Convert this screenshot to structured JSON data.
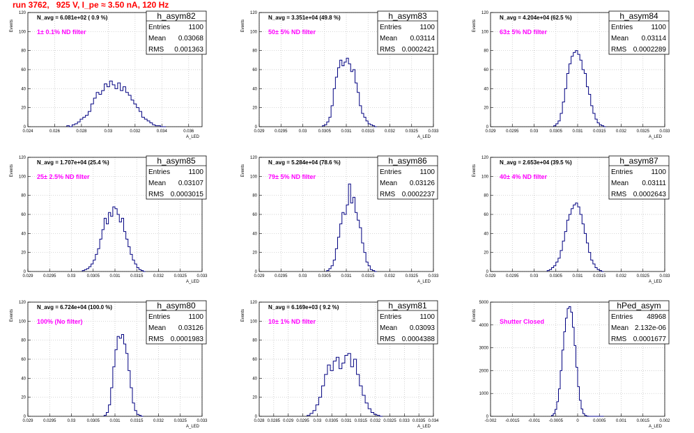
{
  "page": {
    "title": "run 3762,   925 V, I_pe ≈ 3.50 nA, 120 Hz",
    "colors": {
      "title": "#ff0000",
      "histogram": "#000080",
      "annotation": "#ff00ff",
      "grid": "#bdbdbd"
    }
  },
  "chart_data": [
    {
      "type": "bar",
      "name": "h_asym82",
      "info": "N_avg = 6.081e+02 ( 0.9 %)",
      "annotation": "1± 0.1% ND filter",
      "xlabel": "A_LED",
      "ylabel": "Events",
      "xlim": [
        0.024,
        0.037
      ],
      "ylim": [
        0,
        120
      ],
      "xticks": [
        0.024,
        0.026,
        0.028,
        0.03,
        0.032,
        0.034,
        0.036
      ],
      "xtick_labels": [
        "0.024",
        "0.026",
        "0.028",
        "0.03",
        "0.032",
        "0.034",
        "0.036"
      ],
      "yticks": [
        0,
        20,
        40,
        60,
        80,
        100,
        120
      ],
      "stats": {
        "Entries": "1100",
        "Mean": "0.03068",
        "RMS": "0.001363"
      },
      "bins": {
        "start": 0.0269,
        "width": 0.0002,
        "values": [
          1,
          0,
          2,
          3,
          5,
          8,
          10,
          12,
          16,
          24,
          30,
          36,
          34,
          38,
          45,
          42,
          48,
          44,
          40,
          46,
          38,
          42,
          36,
          33,
          28,
          24,
          20,
          16,
          10,
          8,
          6,
          4,
          2,
          1,
          1,
          0,
          0
        ]
      }
    },
    {
      "type": "bar",
      "name": "h_asym83",
      "info": "N_avg = 3.351e+04 (49.8 %)",
      "annotation": "50± 5% ND filter",
      "xlabel": "A_LED",
      "ylabel": "Events",
      "xlim": [
        0.029,
        0.033
      ],
      "ylim": [
        0,
        120
      ],
      "xticks": [
        0.029,
        0.0295,
        0.03,
        0.0305,
        0.031,
        0.0315,
        0.032,
        0.0325,
        0.033
      ],
      "xtick_labels": [
        "0.029",
        "0.0295",
        "0.03",
        "0.0305",
        "0.031",
        "0.0315",
        "0.032",
        "0.0325",
        "0.033"
      ],
      "yticks": [
        0,
        20,
        40,
        60,
        80,
        100,
        120
      ],
      "stats": {
        "Entries": "1100",
        "Mean": "0.03114",
        "RMS": "0.0002421"
      },
      "bins": {
        "start": 0.03045,
        "width": 5e-05,
        "values": [
          1,
          2,
          5,
          10,
          22,
          40,
          52,
          62,
          70,
          64,
          68,
          72,
          66,
          58,
          60,
          46,
          36,
          22,
          14,
          10,
          6,
          3,
          2,
          1,
          0
        ]
      }
    },
    {
      "type": "bar",
      "name": "h_asym84",
      "info": "N_avg = 4.204e+04 (62.5 %)",
      "annotation": "63± 5% ND filter",
      "xlabel": "A_LED",
      "ylabel": "Events",
      "xlim": [
        0.029,
        0.033
      ],
      "ylim": [
        0,
        120
      ],
      "xticks": [
        0.029,
        0.0295,
        0.03,
        0.0305,
        0.031,
        0.0315,
        0.032,
        0.0325,
        0.033
      ],
      "xtick_labels": [
        "0.029",
        "0.0295",
        "0.03",
        "0.0305",
        "0.031",
        "0.0315",
        "0.032",
        "0.0325",
        "0.033"
      ],
      "yticks": [
        0,
        20,
        40,
        60,
        80,
        100,
        120
      ],
      "stats": {
        "Entries": "1100",
        "Mean": "0.03114",
        "RMS": "0.0002289"
      },
      "bins": {
        "start": 0.03045,
        "width": 5e-05,
        "values": [
          1,
          3,
          6,
          14,
          26,
          40,
          56,
          66,
          74,
          78,
          80,
          76,
          70,
          60,
          56,
          42,
          34,
          22,
          14,
          8,
          4,
          2,
          1,
          0
        ]
      }
    },
    {
      "type": "bar",
      "name": "h_asym85",
      "info": "N_avg = 1.707e+04 (25.4 %)",
      "annotation": "25± 2.5% ND filter",
      "xlabel": "A_LED",
      "ylabel": "Events",
      "xlim": [
        0.029,
        0.033
      ],
      "ylim": [
        0,
        120
      ],
      "xticks": [
        0.029,
        0.0295,
        0.03,
        0.0305,
        0.031,
        0.0315,
        0.032,
        0.0325,
        0.033
      ],
      "xtick_labels": [
        "0.029",
        "0.0295",
        "0.03",
        "0.0305",
        "0.031",
        "0.0315",
        "0.032",
        "0.0325",
        "0.033"
      ],
      "yticks": [
        0,
        20,
        40,
        60,
        80,
        100,
        120
      ],
      "stats": {
        "Entries": "1100",
        "Mean": "0.03107",
        "RMS": "0.0003015"
      },
      "bins": {
        "start": 0.03025,
        "width": 5e-05,
        "values": [
          1,
          2,
          3,
          5,
          8,
          12,
          18,
          24,
          34,
          44,
          56,
          50,
          62,
          58,
          68,
          66,
          60,
          52,
          56,
          42,
          34,
          26,
          18,
          12,
          8,
          4,
          2,
          1,
          0
        ]
      }
    },
    {
      "type": "bar",
      "name": "h_asym86",
      "info": "N_avg = 5.284e+04 (78.6 %)",
      "annotation": "79± 5% ND filter",
      "xlabel": "A_LED",
      "ylabel": "Events",
      "xlim": [
        0.029,
        0.033
      ],
      "ylim": [
        0,
        120
      ],
      "xticks": [
        0.029,
        0.0295,
        0.03,
        0.0305,
        0.031,
        0.0315,
        0.032,
        0.0325,
        0.033
      ],
      "xtick_labels": [
        "0.029",
        "0.0295",
        "0.03",
        "0.0305",
        "0.031",
        "0.0315",
        "0.032",
        "0.0325",
        "0.033"
      ],
      "yticks": [
        0,
        20,
        40,
        60,
        80,
        100,
        120
      ],
      "stats": {
        "Entries": "1100",
        "Mean": "0.03126",
        "RMS": "0.0002237"
      },
      "bins": {
        "start": 0.03055,
        "width": 5e-05,
        "values": [
          1,
          3,
          6,
          12,
          24,
          36,
          50,
          62,
          60,
          70,
          92,
          72,
          78,
          62,
          54,
          46,
          30,
          20,
          10,
          6,
          2,
          1,
          0
        ]
      }
    },
    {
      "type": "bar",
      "name": "h_asym87",
      "info": "N_avg = 2.653e+04 (39.5 %)",
      "annotation": "40± 4% ND filter",
      "xlabel": "A_LED",
      "ylabel": "Events",
      "xlim": [
        0.029,
        0.033
      ],
      "ylim": [
        0,
        120
      ],
      "xticks": [
        0.029,
        0.0295,
        0.03,
        0.0305,
        0.031,
        0.0315,
        0.032,
        0.0325,
        0.033
      ],
      "xtick_labels": [
        "0.029",
        "0.0295",
        "0.03",
        "0.0305",
        "0.031",
        "0.0315",
        "0.032",
        "0.0325",
        "0.033"
      ],
      "yticks": [
        0,
        20,
        40,
        60,
        80,
        100,
        120
      ],
      "stats": {
        "Entries": "1100",
        "Mean": "0.03111",
        "RMS": "0.0002643"
      },
      "bins": {
        "start": 0.0303,
        "width": 5e-05,
        "values": [
          1,
          2,
          4,
          6,
          10,
          14,
          22,
          32,
          42,
          54,
          60,
          66,
          70,
          72,
          68,
          60,
          50,
          40,
          30,
          20,
          12,
          8,
          4,
          2,
          1,
          0
        ]
      }
    },
    {
      "type": "bar",
      "name": "h_asym80",
      "info": "N_avg = 6.724e+04 (100.0 %)",
      "annotation": "100% (No filter)",
      "xlabel": "A_LED",
      "ylabel": "Events",
      "xlim": [
        0.029,
        0.033
      ],
      "ylim": [
        0,
        120
      ],
      "xticks": [
        0.029,
        0.0295,
        0.03,
        0.0305,
        0.031,
        0.0315,
        0.032,
        0.0325,
        0.033
      ],
      "xtick_labels": [
        "0.029",
        "0.0295",
        "0.03",
        "0.0305",
        "0.031",
        "0.0315",
        "0.032",
        "0.0325",
        "0.033"
      ],
      "yticks": [
        0,
        20,
        40,
        60,
        80,
        100,
        120
      ],
      "stats": {
        "Entries": "1100",
        "Mean": "0.03126",
        "RMS": "0.0001983"
      },
      "bins": {
        "start": 0.03075,
        "width": 5e-05,
        "values": [
          1,
          4,
          12,
          30,
          52,
          70,
          84,
          82,
          86,
          76,
          66,
          48,
          30,
          14,
          6,
          2,
          1,
          0
        ]
      }
    },
    {
      "type": "bar",
      "name": "h_asym81",
      "info": "N_avg = 6.169e+03 ( 9.2 %)",
      "annotation": "10± 1% ND filter",
      "xlabel": "A_LED",
      "ylabel": "Events",
      "xlim": [
        0.028,
        0.034
      ],
      "ylim": [
        0,
        120
      ],
      "xticks": [
        0.028,
        0.0285,
        0.029,
        0.0295,
        0.03,
        0.0305,
        0.031,
        0.0315,
        0.032,
        0.0325,
        0.033,
        0.0335,
        0.034
      ],
      "xtick_labels": [
        "0.028",
        "0.0285",
        "0.029",
        "0.0295",
        "0.03",
        "0.0305",
        "0.031",
        "0.0315",
        "0.032",
        "0.0325",
        "0.033",
        "0.0335",
        "0.034"
      ],
      "yticks": [
        0,
        20,
        40,
        60,
        80,
        100,
        120
      ],
      "stats": {
        "Entries": "1100",
        "Mean": "0.03093",
        "RMS": "0.0004388"
      },
      "bins": {
        "start": 0.02965,
        "width": 0.0001,
        "values": [
          1,
          3,
          6,
          12,
          20,
          32,
          44,
          54,
          48,
          58,
          62,
          50,
          56,
          64,
          66,
          52,
          60,
          44,
          32,
          22,
          14,
          8,
          4,
          2,
          1,
          0
        ]
      }
    },
    {
      "type": "bar",
      "name": "hPed_asym",
      "info": "",
      "annotation": "Shutter Closed",
      "xlabel": "A_LED",
      "ylabel": "Events",
      "xlim": [
        -0.002,
        0.002
      ],
      "ylim": [
        0,
        5000
      ],
      "xticks": [
        -0.002,
        -0.0015,
        -0.001,
        -0.0005,
        0,
        0.0005,
        0.001,
        0.0015,
        0.002
      ],
      "xtick_labels": [
        "-0.002",
        "-0.0015",
        "-0.001",
        "-0.0005",
        "0",
        "0.0005",
        "0.001",
        "0.0015",
        "0.002"
      ],
      "yticks": [
        0,
        1000,
        2000,
        3000,
        4000,
        5000
      ],
      "stats": {
        "Entries": "48968",
        "Mean": "2.132e-06",
        "RMS": "0.0001677"
      },
      "bins": {
        "start": -0.0006,
        "width": 4e-05,
        "values": [
          40,
          120,
          300,
          640,
          1200,
          2000,
          2900,
          3700,
          4300,
          4720,
          4800,
          4560,
          3900,
          3100,
          2150,
          1300,
          700,
          320,
          120,
          40,
          10,
          0,
          0,
          0,
          0,
          0,
          0,
          0,
          0,
          0
        ]
      }
    }
  ]
}
